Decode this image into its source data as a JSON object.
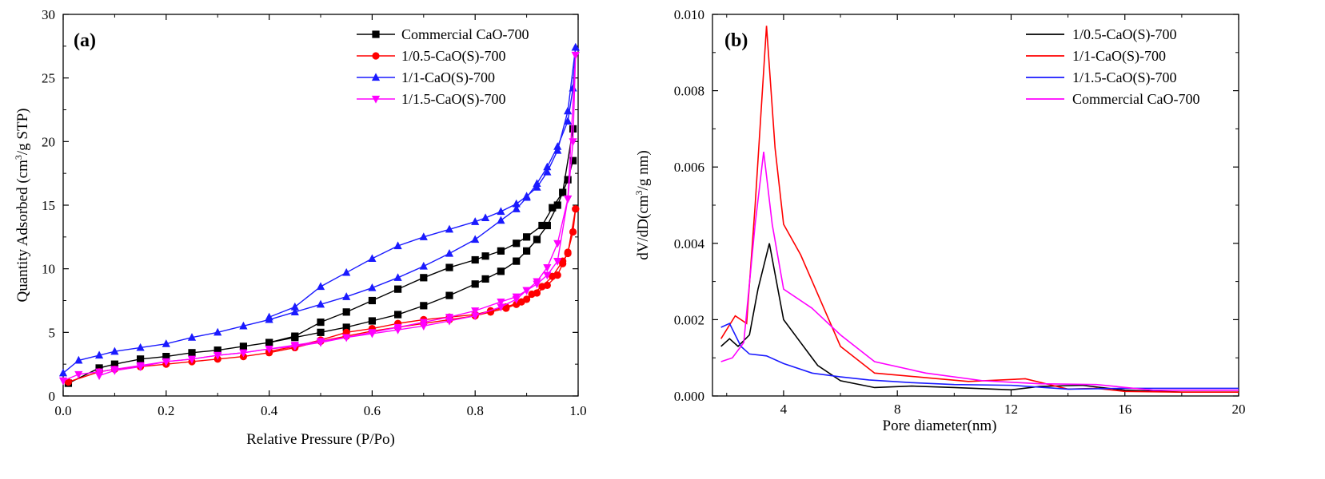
{
  "chart_data": [
    {
      "type": "line",
      "panel_label": "(a)",
      "xlabel": "Relative Pressure (P/Po)",
      "ylabel": "Quantity Adsorbed (cm³/g STP)",
      "ylabel_parts": {
        "pre": "Quantity Adsorbed (cm",
        "sup": "3",
        "post": "/g STP)"
      },
      "xlim": [
        0,
        1.0
      ],
      "ylim": [
        0,
        30
      ],
      "xticks": [
        "0.0",
        "0.2",
        "0.4",
        "0.6",
        "0.8",
        "1.0"
      ],
      "yticks": [
        "0",
        "5",
        "10",
        "15",
        "20",
        "25",
        "30"
      ],
      "legend_position": "top-right",
      "series": [
        {
          "name": "Commercial CaO-700",
          "color": "#000000",
          "marker": "square",
          "adsorption": [
            [
              0.01,
              1.0
            ],
            [
              0.07,
              2.2
            ],
            [
              0.1,
              2.5
            ],
            [
              0.15,
              2.9
            ],
            [
              0.2,
              3.1
            ],
            [
              0.25,
              3.4
            ],
            [
              0.3,
              3.6
            ],
            [
              0.35,
              3.9
            ],
            [
              0.4,
              4.2
            ],
            [
              0.45,
              4.6
            ],
            [
              0.5,
              5.0
            ],
            [
              0.55,
              5.4
            ],
            [
              0.6,
              5.9
            ],
            [
              0.65,
              6.4
            ],
            [
              0.7,
              7.1
            ],
            [
              0.75,
              7.9
            ],
            [
              0.8,
              8.8
            ],
            [
              0.82,
              9.2
            ],
            [
              0.85,
              9.8
            ],
            [
              0.88,
              10.6
            ],
            [
              0.9,
              11.4
            ],
            [
              0.92,
              12.3
            ],
            [
              0.94,
              13.4
            ],
            [
              0.96,
              15.0
            ],
            [
              0.98,
              17.0
            ],
            [
              0.99,
              18.5
            ]
          ],
          "desorption": [
            [
              0.99,
              21.0
            ],
            [
              0.97,
              16.0
            ],
            [
              0.95,
              14.8
            ],
            [
              0.93,
              13.4
            ],
            [
              0.9,
              12.5
            ],
            [
              0.88,
              12.0
            ],
            [
              0.85,
              11.4
            ],
            [
              0.82,
              11.0
            ],
            [
              0.8,
              10.7
            ],
            [
              0.75,
              10.1
            ],
            [
              0.7,
              9.3
            ],
            [
              0.65,
              8.4
            ],
            [
              0.6,
              7.5
            ],
            [
              0.55,
              6.6
            ],
            [
              0.5,
              5.8
            ],
            [
              0.45,
              4.7
            ],
            [
              0.4,
              4.2
            ]
          ]
        },
        {
          "name": "1/0.5-CaO(S)-700",
          "color": "#ff0000",
          "marker": "circle",
          "adsorption": [
            [
              0.01,
              1.1
            ],
            [
              0.07,
              1.9
            ],
            [
              0.1,
              2.1
            ],
            [
              0.15,
              2.3
            ],
            [
              0.2,
              2.5
            ],
            [
              0.25,
              2.7
            ],
            [
              0.3,
              2.9
            ],
            [
              0.35,
              3.1
            ],
            [
              0.4,
              3.4
            ],
            [
              0.45,
              3.8
            ],
            [
              0.5,
              4.3
            ],
            [
              0.55,
              4.7
            ],
            [
              0.6,
              5.1
            ],
            [
              0.65,
              5.4
            ],
            [
              0.7,
              5.7
            ],
            [
              0.75,
              6.0
            ],
            [
              0.8,
              6.3
            ],
            [
              0.83,
              6.6
            ],
            [
              0.86,
              6.9
            ],
            [
              0.88,
              7.2
            ],
            [
              0.9,
              7.6
            ],
            [
              0.92,
              8.1
            ],
            [
              0.94,
              8.7
            ],
            [
              0.96,
              9.5
            ],
            [
              0.97,
              10.4
            ],
            [
              0.98,
              11.3
            ],
            [
              0.99,
              12.9
            ],
            [
              0.995,
              14.7
            ]
          ],
          "desorption": [
            [
              0.995,
              14.7
            ],
            [
              0.98,
              11.2
            ],
            [
              0.97,
              10.6
            ],
            [
              0.95,
              9.4
            ],
            [
              0.93,
              8.6
            ],
            [
              0.91,
              8.0
            ],
            [
              0.89,
              7.4
            ],
            [
              0.86,
              7.0
            ],
            [
              0.83,
              6.7
            ],
            [
              0.8,
              6.4
            ],
            [
              0.75,
              6.2
            ],
            [
              0.7,
              6.0
            ],
            [
              0.65,
              5.7
            ],
            [
              0.6,
              5.3
            ],
            [
              0.55,
              5.0
            ],
            [
              0.5,
              4.4
            ],
            [
              0.45,
              3.9
            ],
            [
              0.4,
              3.5
            ]
          ]
        },
        {
          "name": "1/1-CaO(S)-700",
          "color": "#1a1aff",
          "marker": "triangle-up",
          "adsorption": [
            [
              0.0,
              1.8
            ],
            [
              0.03,
              2.8
            ],
            [
              0.07,
              3.2
            ],
            [
              0.1,
              3.5
            ],
            [
              0.15,
              3.8
            ],
            [
              0.2,
              4.1
            ],
            [
              0.25,
              4.6
            ],
            [
              0.3,
              5.0
            ],
            [
              0.35,
              5.5
            ],
            [
              0.4,
              6.0
            ],
            [
              0.45,
              6.6
            ],
            [
              0.5,
              7.2
            ],
            [
              0.55,
              7.8
            ],
            [
              0.6,
              8.5
            ],
            [
              0.65,
              9.3
            ],
            [
              0.7,
              10.2
            ],
            [
              0.75,
              11.2
            ],
            [
              0.8,
              12.3
            ],
            [
              0.85,
              13.8
            ],
            [
              0.88,
              14.7
            ],
            [
              0.9,
              15.6
            ],
            [
              0.92,
              16.7
            ],
            [
              0.94,
              18.0
            ],
            [
              0.96,
              19.6
            ],
            [
              0.98,
              21.6
            ],
            [
              0.99,
              24.2
            ],
            [
              0.995,
              27.4
            ]
          ],
          "desorption": [
            [
              0.995,
              27.4
            ],
            [
              0.98,
              22.4
            ],
            [
              0.96,
              19.3
            ],
            [
              0.94,
              17.6
            ],
            [
              0.92,
              16.4
            ],
            [
              0.9,
              15.7
            ],
            [
              0.88,
              15.1
            ],
            [
              0.85,
              14.5
            ],
            [
              0.82,
              14.0
            ],
            [
              0.8,
              13.7
            ],
            [
              0.75,
              13.1
            ],
            [
              0.7,
              12.5
            ],
            [
              0.65,
              11.8
            ],
            [
              0.6,
              10.8
            ],
            [
              0.55,
              9.7
            ],
            [
              0.5,
              8.6
            ],
            [
              0.45,
              7.0
            ],
            [
              0.4,
              6.2
            ]
          ]
        },
        {
          "name": "1/1.5-CaO(S)-700",
          "color": "#ff00ff",
          "marker": "triangle-down",
          "adsorption": [
            [
              0.0,
              1.2
            ],
            [
              0.03,
              1.7
            ],
            [
              0.07,
              1.9
            ],
            [
              0.1,
              2.1
            ],
            [
              0.15,
              2.4
            ],
            [
              0.2,
              2.7
            ],
            [
              0.25,
              2.9
            ],
            [
              0.3,
              3.2
            ],
            [
              0.35,
              3.4
            ],
            [
              0.4,
              3.7
            ],
            [
              0.45,
              4.0
            ],
            [
              0.5,
              4.3
            ],
            [
              0.55,
              4.6
            ],
            [
              0.6,
              4.9
            ],
            [
              0.65,
              5.2
            ],
            [
              0.7,
              5.5
            ],
            [
              0.75,
              5.9
            ],
            [
              0.8,
              6.3
            ],
            [
              0.85,
              7.0
            ],
            [
              0.88,
              7.6
            ],
            [
              0.9,
              8.3
            ],
            [
              0.92,
              9.0
            ],
            [
              0.94,
              10.1
            ],
            [
              0.96,
              12.0
            ],
            [
              0.98,
              15.5
            ],
            [
              0.99,
              20.0
            ],
            [
              0.995,
              26.8
            ]
          ],
          "desorption": [
            [
              0.995,
              26.8
            ],
            [
              0.98,
              15.5
            ],
            [
              0.96,
              10.6
            ],
            [
              0.94,
              9.5
            ],
            [
              0.92,
              8.8
            ],
            [
              0.9,
              8.3
            ],
            [
              0.88,
              7.8
            ],
            [
              0.85,
              7.4
            ],
            [
              0.8,
              6.7
            ],
            [
              0.75,
              6.2
            ],
            [
              0.7,
              5.8
            ],
            [
              0.65,
              5.4
            ],
            [
              0.6,
              5.0
            ],
            [
              0.55,
              4.6
            ],
            [
              0.5,
              4.2
            ],
            [
              0.45,
              3.9
            ],
            [
              0.4,
              3.7
            ],
            [
              0.35,
              3.4
            ],
            [
              0.3,
              3.2
            ],
            [
              0.25,
              2.9
            ],
            [
              0.2,
              2.7
            ],
            [
              0.15,
              2.3
            ],
            [
              0.1,
              2.0
            ],
            [
              0.07,
              1.6
            ]
          ]
        }
      ]
    },
    {
      "type": "line",
      "panel_label": "(b)",
      "xlabel": "Pore diameter(nm)",
      "ylabel": "dV/dD(cm³/g nm)",
      "ylabel_parts": {
        "pre": "dV/dD(cm",
        "sup": "3",
        "post": "/g nm)"
      },
      "xlim": [
        1.5,
        20
      ],
      "ylim": [
        0,
        0.01
      ],
      "xticks": [
        "4",
        "8",
        "12",
        "16",
        "20"
      ],
      "yticks": [
        "0.000",
        "0.002",
        "0.004",
        "0.006",
        "0.008",
        "0.010"
      ],
      "legend_position": "top-right",
      "series": [
        {
          "name": "1/0.5-CaO(S)-700",
          "color": "#000000",
          "points": [
            [
              1.8,
              0.0013
            ],
            [
              2.1,
              0.0015
            ],
            [
              2.4,
              0.0013
            ],
            [
              2.8,
              0.0016
            ],
            [
              3.1,
              0.0028
            ],
            [
              3.5,
              0.004
            ],
            [
              4.0,
              0.002
            ],
            [
              4.5,
              0.0015
            ],
            [
              5.2,
              0.0008
            ],
            [
              6.0,
              0.0004
            ],
            [
              7.2,
              0.00022
            ],
            [
              8.5,
              0.00026
            ],
            [
              10.0,
              0.00022
            ],
            [
              12.0,
              0.00016
            ],
            [
              13.0,
              0.00025
            ],
            [
              14.5,
              0.00028
            ],
            [
              16,
              0.00015
            ],
            [
              18,
              0.0001
            ],
            [
              20,
              0.0001
            ]
          ]
        },
        {
          "name": "1/1-CaO(S)-700",
          "color": "#ff0000",
          "points": [
            [
              1.8,
              0.0015
            ],
            [
              2.3,
              0.0021
            ],
            [
              2.7,
              0.0019
            ],
            [
              3.0,
              0.005
            ],
            [
              3.4,
              0.0097
            ],
            [
              3.7,
              0.0065
            ],
            [
              4.0,
              0.0045
            ],
            [
              4.6,
              0.0037
            ],
            [
              6.0,
              0.0013
            ],
            [
              7.2,
              0.0006
            ],
            [
              9.0,
              0.00048
            ],
            [
              10.5,
              0.00038
            ],
            [
              12.5,
              0.00045
            ],
            [
              14,
              0.00018
            ],
            [
              15,
              0.0002
            ],
            [
              16,
              0.00012
            ],
            [
              18,
              0.0001
            ],
            [
              20,
              0.0001
            ]
          ]
        },
        {
          "name": "1/1.5-CaO(S)-700",
          "color": "#1a1aff",
          "points": [
            [
              1.8,
              0.0018
            ],
            [
              2.1,
              0.0019
            ],
            [
              2.5,
              0.0013
            ],
            [
              2.8,
              0.0011
            ],
            [
              3.4,
              0.00105
            ],
            [
              4.0,
              0.00085
            ],
            [
              5.0,
              0.0006
            ],
            [
              6.0,
              0.0005
            ],
            [
              7.0,
              0.00042
            ],
            [
              8.5,
              0.00035
            ],
            [
              10,
              0.0003
            ],
            [
              12,
              0.00028
            ],
            [
              14,
              0.00018
            ],
            [
              16,
              0.0002
            ],
            [
              18,
              0.0002
            ],
            [
              20,
              0.0002
            ]
          ]
        },
        {
          "name": "Commercial CaO-700",
          "color": "#ff00ff",
          "points": [
            [
              1.8,
              0.0009
            ],
            [
              2.2,
              0.001
            ],
            [
              2.6,
              0.0014
            ],
            [
              3.0,
              0.0045
            ],
            [
              3.3,
              0.0064
            ],
            [
              3.6,
              0.0045
            ],
            [
              4.0,
              0.0028
            ],
            [
              5.0,
              0.0023
            ],
            [
              6.0,
              0.0016
            ],
            [
              7.2,
              0.0009
            ],
            [
              9,
              0.0006
            ],
            [
              11,
              0.0004
            ],
            [
              13,
              0.00032
            ],
            [
              15,
              0.0003
            ],
            [
              17,
              0.00015
            ],
            [
              20,
              0.00015
            ]
          ]
        }
      ]
    }
  ]
}
